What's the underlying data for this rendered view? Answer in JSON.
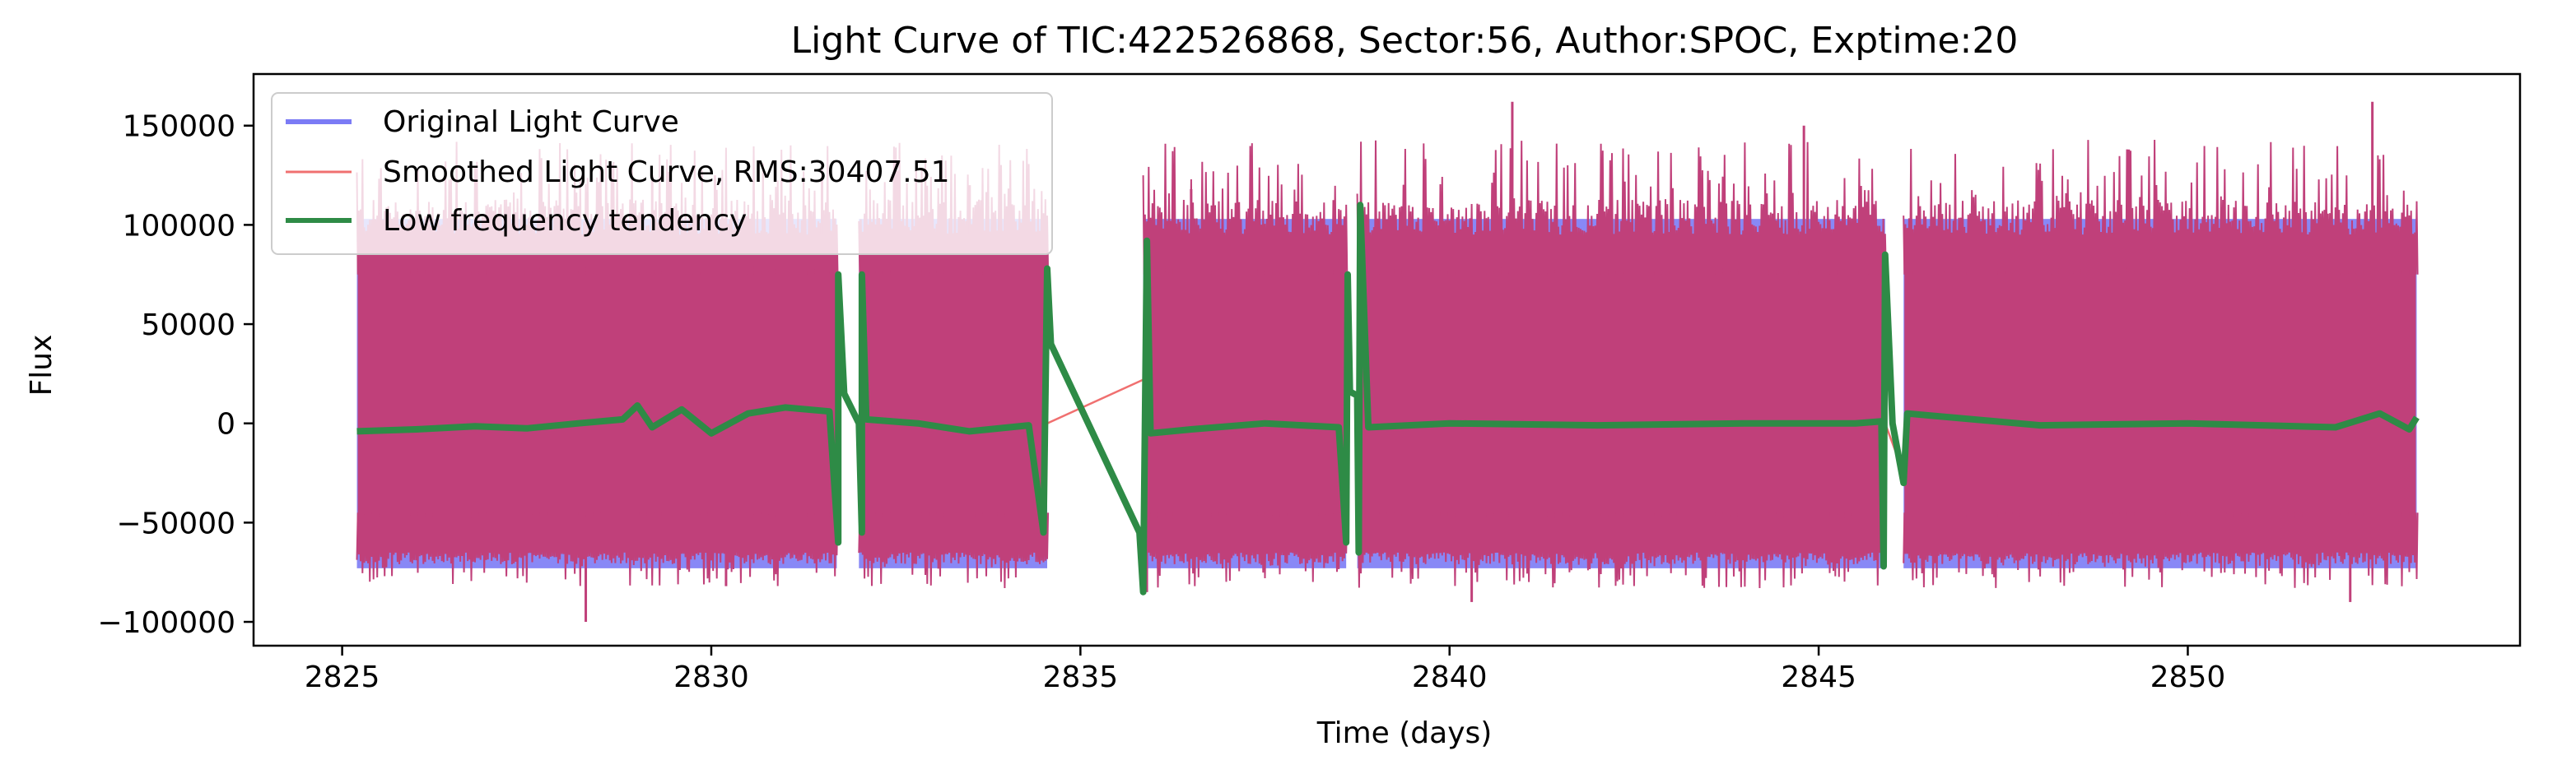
{
  "chart_data": {
    "type": "line",
    "title": "Light Curve of TIC:422526868, Sector:56, Author:SPOC, Exptime:20",
    "xlabel": "Time (days)",
    "ylabel": "Flux",
    "xlim": [
      2823.8,
      2854.5
    ],
    "ylim": [
      -112000,
      176000
    ],
    "x_ticks": [
      2825,
      2830,
      2835,
      2840,
      2845,
      2850
    ],
    "x_tick_labels": [
      "2825",
      "2830",
      "2835",
      "2840",
      "2845",
      "2850"
    ],
    "y_ticks": [
      -100000,
      -50000,
      0,
      50000,
      100000,
      150000
    ],
    "y_tick_labels": [
      "−100000",
      "−50000",
      "0",
      "50000",
      "100000",
      "150000"
    ],
    "grid": false,
    "legend_position": "upper-left",
    "colors": {
      "original": "#7b7bf5",
      "smoothed": "#f07070",
      "tendency": "#2e8b46",
      "band_fill": "#c0407a"
    },
    "segments": [
      [
        2825.2,
        2831.7
      ],
      [
        2832.0,
        2834.55
      ],
      [
        2835.85,
        2838.6
      ],
      [
        2838.75,
        2845.9
      ],
      [
        2846.15,
        2853.1
      ]
    ],
    "series": [
      {
        "name": "Original Light Curve",
        "style": "band",
        "envelope_typical": [
          -65000,
          95000
        ],
        "envelope_extremes": [
          -100000,
          162000
        ],
        "peaks": [
          {
            "x": 2829.2,
            "y": 125000
          },
          {
            "x": 2830.05,
            "y": 125000
          },
          {
            "x": 2831.5,
            "y": 128000
          },
          {
            "x": 2833.5,
            "y": 120000
          },
          {
            "x": 2836.5,
            "y": 118000
          },
          {
            "x": 2840.85,
            "y": 162000
          },
          {
            "x": 2844.8,
            "y": 150000
          },
          {
            "x": 2849.2,
            "y": 138000
          },
          {
            "x": 2852.5,
            "y": 162000
          }
        ],
        "troughs": [
          {
            "x": 2828.3,
            "y": -100000
          },
          {
            "x": 2830.2,
            "y": -82000
          },
          {
            "x": 2835.9,
            "y": -85000
          },
          {
            "x": 2840.3,
            "y": -90000
          },
          {
            "x": 2852.2,
            "y": -90000
          }
        ]
      },
      {
        "name": "Smoothed Light Curve, RMS:30407.51",
        "style": "band",
        "gap_connections": [
          {
            "x": [
              2834.55,
              2835.85
            ],
            "y": [
              0,
              22000
            ]
          },
          {
            "x": [
              2845.9,
              2846.15
            ],
            "y": [
              0,
              -25000
            ]
          }
        ]
      },
      {
        "name": "Low frequency tendency",
        "style": "line",
        "points": [
          [
            2825.2,
            -4000
          ],
          [
            2826.0,
            -3000
          ],
          [
            2826.8,
            -1500
          ],
          [
            2827.5,
            -2500
          ],
          [
            2828.2,
            0
          ],
          [
            2828.8,
            2000
          ],
          [
            2829.0,
            9000
          ],
          [
            2829.2,
            -2000
          ],
          [
            2829.6,
            7000
          ],
          [
            2830.0,
            -5000
          ],
          [
            2830.5,
            5000
          ],
          [
            2831.0,
            8000
          ],
          [
            2831.6,
            6000
          ],
          [
            2831.72,
            -60000
          ],
          [
            2831.72,
            75000
          ],
          [
            2831.8,
            15000
          ],
          [
            2832.0,
            0
          ],
          [
            2832.04,
            -55000
          ],
          [
            2832.04,
            75000
          ],
          [
            2832.1,
            2000
          ],
          [
            2832.8,
            0
          ],
          [
            2833.5,
            -4000
          ],
          [
            2834.3,
            -1000
          ],
          [
            2834.5,
            -55000
          ],
          [
            2834.55,
            78000
          ],
          [
            2834.6,
            40000
          ],
          [
            2835.8,
            -55000
          ],
          [
            2835.85,
            -85000
          ],
          [
            2835.9,
            92000
          ],
          [
            2835.95,
            -5000
          ],
          [
            2836.5,
            -3000
          ],
          [
            2837.5,
            0
          ],
          [
            2838.5,
            -2000
          ],
          [
            2838.6,
            -60000
          ],
          [
            2838.62,
            75000
          ],
          [
            2838.65,
            16000
          ],
          [
            2838.75,
            14000
          ],
          [
            2838.77,
            -65000
          ],
          [
            2838.79,
            110000
          ],
          [
            2838.9,
            -2000
          ],
          [
            2840.0,
            0
          ],
          [
            2842.0,
            -1000
          ],
          [
            2844.0,
            0
          ],
          [
            2845.5,
            0
          ],
          [
            2845.85,
            1000
          ],
          [
            2845.88,
            -72000
          ],
          [
            2845.9,
            85000
          ],
          [
            2846.0,
            0
          ],
          [
            2846.15,
            -30000
          ],
          [
            2846.2,
            5000
          ],
          [
            2848.0,
            -1000
          ],
          [
            2850.0,
            0
          ],
          [
            2852.0,
            -2000
          ],
          [
            2852.6,
            5000
          ],
          [
            2853.0,
            -3000
          ],
          [
            2853.1,
            3000
          ]
        ]
      }
    ]
  }
}
